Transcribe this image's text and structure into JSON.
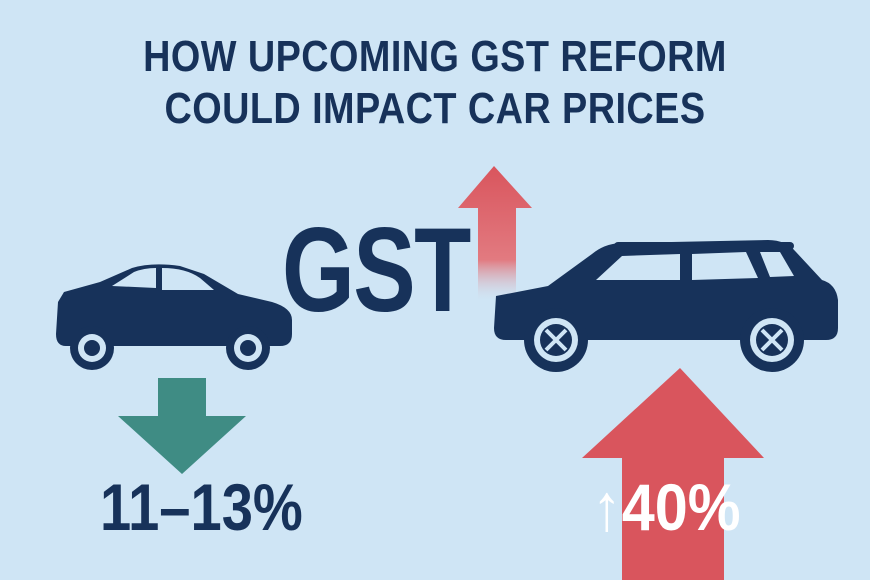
{
  "title": {
    "line1": "HOW UPCOMING GST REFORM",
    "line2": "COULD IMPACT CAR PRICES"
  },
  "center_label": "GST",
  "small_car": {
    "icon": "sedan-car-icon",
    "change_direction": "down",
    "change_text": "11–13%"
  },
  "large_car": {
    "icon": "suv-car-icon",
    "change_direction": "up",
    "change_text": "↑40%"
  },
  "colors": {
    "background": "#cfe5f5",
    "navy": "#17325a",
    "teal_down_arrow": "#3f8c84",
    "red_up_arrow": "#d9555d"
  }
}
